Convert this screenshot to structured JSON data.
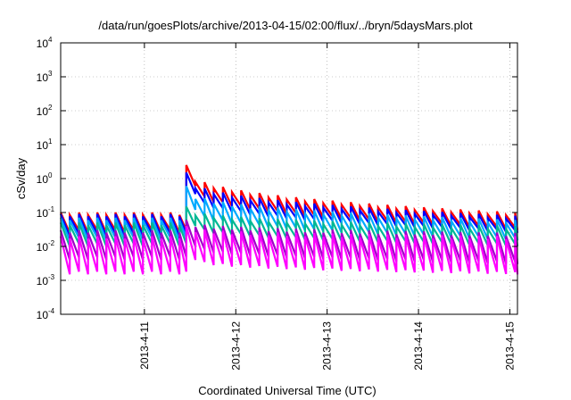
{
  "chart_data": {
    "type": "line",
    "title": "/data/run/goesPlots/archive/2013-04-15/02:00/flux/../bryn/5daysMars.plot",
    "xlabel": "Coordinated Universal Time (UTC)",
    "ylabel": "cSv/day",
    "y_scale": "log",
    "ylim": [
      0.0001,
      10000
    ],
    "y_ticks": [
      {
        "value": 0.0001,
        "base": "10",
        "exp": "-4"
      },
      {
        "value": 0.001,
        "base": "10",
        "exp": "-3"
      },
      {
        "value": 0.01,
        "base": "10",
        "exp": "-2"
      },
      {
        "value": 0.1,
        "base": "10",
        "exp": "-1"
      },
      {
        "value": 1,
        "base": "10",
        "exp": "0"
      },
      {
        "value": 10,
        "base": "10",
        "exp": "1"
      },
      {
        "value": 100,
        "base": "10",
        "exp": "2"
      },
      {
        "value": 1000,
        "base": "10",
        "exp": "3"
      },
      {
        "value": 10000,
        "base": "10",
        "exp": "4"
      }
    ],
    "xlim": [
      "2013-04-10 02:00",
      "2013-04-15 02:00"
    ],
    "x_ticks": [
      "2013-4-11",
      "2013-4-12",
      "2013-4-13",
      "2013-4-14",
      "2013-4-15"
    ],
    "grid": true,
    "legend": "none",
    "sawtooth_period_hours": 2.4,
    "event_start": "2013-04-11 11:00",
    "series": [
      {
        "color": "#ff0000",
        "peak_before_event": 0.1,
        "trough_before_event": 0.025,
        "peak_after_event": 2.5,
        "trough_after_event": 0.6,
        "peak_at_end": 0.1,
        "trough_at_end": 0.03
      },
      {
        "color": "#0000ff",
        "peak_before_event": 0.09,
        "trough_before_event": 0.02,
        "peak_after_event": 1.5,
        "trough_after_event": 0.35,
        "peak_at_end": 0.08,
        "trough_at_end": 0.025
      },
      {
        "color": "#00aaff",
        "peak_before_event": 0.07,
        "trough_before_event": 0.015,
        "peak_after_event": 0.6,
        "trough_after_event": 0.12,
        "peak_at_end": 0.06,
        "trough_at_end": 0.015
      },
      {
        "color": "#00b894",
        "peak_before_event": 0.05,
        "trough_before_event": 0.01,
        "peak_after_event": 0.15,
        "trough_after_event": 0.04,
        "peak_at_end": 0.04,
        "trough_at_end": 0.01
      },
      {
        "color": "#a000c8",
        "peak_before_event": 0.03,
        "trough_before_event": 0.004,
        "peak_after_event": 0.06,
        "trough_after_event": 0.01,
        "peak_at_end": 0.025,
        "trough_at_end": 0.003
      },
      {
        "color": "#ff00ff",
        "peak_before_event": 0.02,
        "trough_before_event": 0.0015,
        "peak_after_event": 0.04,
        "trough_after_event": 0.004,
        "peak_at_end": 0.02,
        "trough_at_end": 0.0015
      }
    ]
  }
}
